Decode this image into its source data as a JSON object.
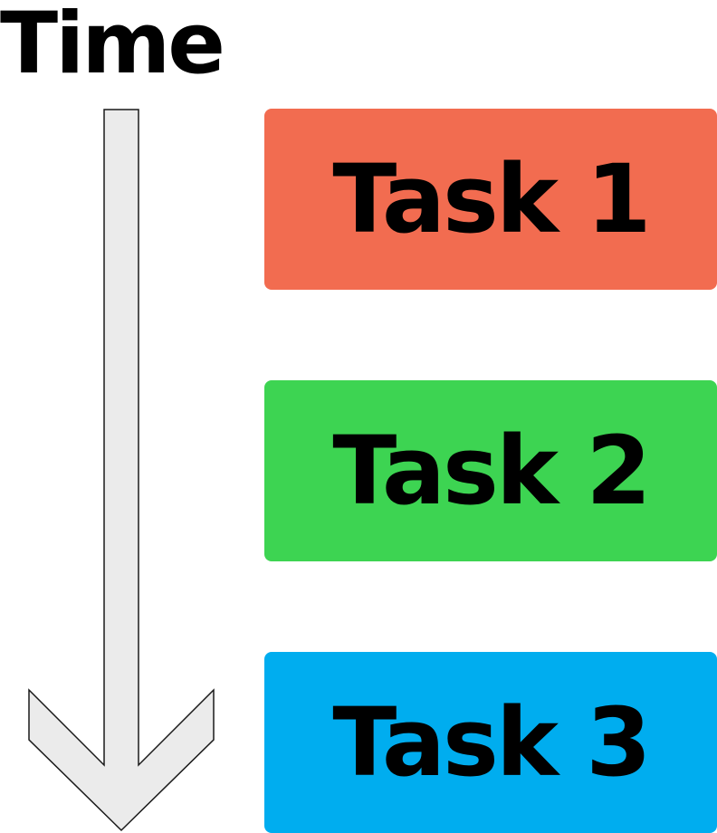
{
  "timeline": {
    "label": "Time",
    "arrow_fill": "#ebebeb",
    "arrow_stroke": "#1a1a1a"
  },
  "tasks": [
    {
      "label": "Task 1",
      "color": "#f26c50"
    },
    {
      "label": "Task 2",
      "color": "#3dd452"
    },
    {
      "label": "Task 3",
      "color": "#00adef"
    }
  ]
}
